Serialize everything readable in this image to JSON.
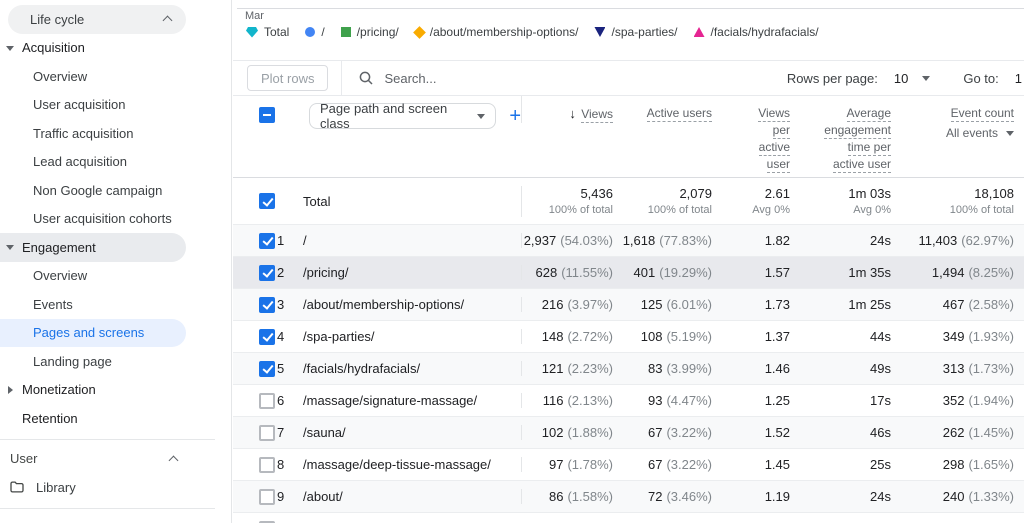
{
  "sidebar": {
    "lifecycle": {
      "label": "Life cycle"
    },
    "acquisition": {
      "label": "Acquisition",
      "items": [
        "Overview",
        "User acquisition",
        "Traffic acquisition",
        "Lead acquisition",
        "Non Google campaign",
        "User acquisition cohorts"
      ]
    },
    "engagement": {
      "label": "Engagement",
      "items": [
        "Overview",
        "Events",
        "Pages and screens",
        "Landing page"
      ]
    },
    "monetization": {
      "label": "Monetization"
    },
    "retention": {
      "label": "Retention"
    },
    "user": {
      "label": "User"
    },
    "library": {
      "label": "Library"
    }
  },
  "chart": {
    "x_tick": "Mar"
  },
  "legend": {
    "items": [
      {
        "label": "Total",
        "shape": "pentagon",
        "color": "#12B5CB"
      },
      {
        "label": "/",
        "shape": "circle",
        "color": "#4285F4"
      },
      {
        "label": "/pricing/",
        "shape": "square",
        "color": "#3FA14C"
      },
      {
        "label": "/about/membership-options/",
        "shape": "diamond",
        "color": "#F9AB00"
      },
      {
        "label": "/spa-parties/",
        "shape": "triangle-down",
        "color": "#1A237E"
      },
      {
        "label": "/facials/hydrafacials/",
        "shape": "triangle-up",
        "color": "#E52592"
      }
    ]
  },
  "toolbar": {
    "plot_rows": "Plot rows",
    "search_placeholder": "Search...",
    "rows_per_page_label": "Rows per page:",
    "rows_per_page_value": "10",
    "go_to_label": "Go to:",
    "go_to_value": "1"
  },
  "table": {
    "dimension_selector": "Page path and screen class",
    "add_button": "+",
    "headers": {
      "sort_icon": "↓",
      "views": "Views",
      "active_users": "Active users",
      "vpau_lines": [
        "Views",
        "per",
        "active",
        "user"
      ],
      "aet_lines": [
        "Average",
        "engagement",
        "time per",
        "active user"
      ],
      "event_count": "Event count",
      "event_filter": "All events"
    },
    "total": {
      "label": "Total",
      "views": "5,436",
      "views_sub": "100% of total",
      "active": "2,079",
      "active_sub": "100% of total",
      "vpau": "2.61",
      "vpau_sub": "Avg 0%",
      "aet": "1m 03s",
      "aet_sub": "Avg 0%",
      "events": "18,108",
      "events_sub": "100% of total"
    },
    "rows": [
      {
        "num": "1",
        "path": "/",
        "checked": true,
        "hover": false,
        "views": "2,937",
        "views_pct": "(54.03%)",
        "active": "1,618",
        "active_pct": "(77.83%)",
        "vpau": "1.82",
        "aet": "24s",
        "events": "11,403",
        "events_pct": "(62.97%)"
      },
      {
        "num": "2",
        "path": "/pricing/",
        "checked": true,
        "hover": true,
        "views": "628",
        "views_pct": "(11.55%)",
        "active": "401",
        "active_pct": "(19.29%)",
        "vpau": "1.57",
        "aet": "1m 35s",
        "events": "1,494",
        "events_pct": "(8.25%)"
      },
      {
        "num": "3",
        "path": "/about/membership-options/",
        "checked": true,
        "hover": false,
        "views": "216",
        "views_pct": "(3.97%)",
        "active": "125",
        "active_pct": "(6.01%)",
        "vpau": "1.73",
        "aet": "1m 25s",
        "events": "467",
        "events_pct": "(2.58%)"
      },
      {
        "num": "4",
        "path": "/spa-parties/",
        "checked": true,
        "hover": false,
        "views": "148",
        "views_pct": "(2.72%)",
        "active": "108",
        "active_pct": "(5.19%)",
        "vpau": "1.37",
        "aet": "44s",
        "events": "349",
        "events_pct": "(1.93%)"
      },
      {
        "num": "5",
        "path": "/facials/hydrafacials/",
        "checked": true,
        "hover": false,
        "views": "121",
        "views_pct": "(2.23%)",
        "active": "83",
        "active_pct": "(3.99%)",
        "vpau": "1.46",
        "aet": "49s",
        "events": "313",
        "events_pct": "(1.73%)"
      },
      {
        "num": "6",
        "path": "/massage/signature-massage/",
        "checked": false,
        "hover": false,
        "views": "116",
        "views_pct": "(2.13%)",
        "active": "93",
        "active_pct": "(4.47%)",
        "vpau": "1.25",
        "aet": "17s",
        "events": "352",
        "events_pct": "(1.94%)"
      },
      {
        "num": "7",
        "path": "/sauna/",
        "checked": false,
        "hover": false,
        "views": "102",
        "views_pct": "(1.88%)",
        "active": "67",
        "active_pct": "(3.22%)",
        "vpau": "1.52",
        "aet": "46s",
        "events": "262",
        "events_pct": "(1.45%)"
      },
      {
        "num": "8",
        "path": "/massage/deep-tissue-massage/",
        "checked": false,
        "hover": false,
        "views": "97",
        "views_pct": "(1.78%)",
        "active": "67",
        "active_pct": "(3.22%)",
        "vpau": "1.45",
        "aet": "25s",
        "events": "298",
        "events_pct": "(1.65%)"
      },
      {
        "num": "9",
        "path": "/about/",
        "checked": false,
        "hover": false,
        "views": "86",
        "views_pct": "(1.58%)",
        "active": "72",
        "active_pct": "(3.46%)",
        "vpau": "1.19",
        "aet": "24s",
        "events": "240",
        "events_pct": "(1.33%)"
      },
      {
        "num": "",
        "path": "",
        "checked": false,
        "hover": false,
        "views": "",
        "views_pct": "",
        "active": "",
        "active_pct": "",
        "vpau": "",
        "aet": "",
        "events": "",
        "events_pct": ""
      }
    ]
  }
}
